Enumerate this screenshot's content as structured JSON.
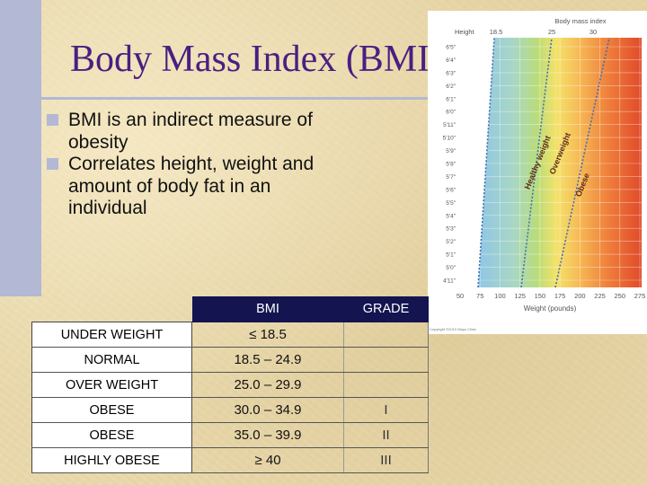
{
  "slide": {
    "title": "Body Mass Index (BMI)",
    "bullets": [
      "BMI is an indirect measure of obesity",
      "Correlates height, weight and amount of body fat in an individual"
    ]
  },
  "chart": {
    "height_label": "Height",
    "top_label": "Body mass index",
    "bmi_ticks": [
      "18.5",
      "25",
      "30"
    ],
    "height_ticks": [
      "6'5\"",
      "6'4\"",
      "6'3\"",
      "6'2\"",
      "6'1\"",
      "6'0\"",
      "5'11\"",
      "5'10\"",
      "5'9\"",
      "5'8\"",
      "5'7\"",
      "5'6\"",
      "5'5\"",
      "5'4\"",
      "5'3\"",
      "5'2\"",
      "5'1\"",
      "5'0\"",
      "4'11\""
    ],
    "weight_ticks": [
      "50",
      "75",
      "100",
      "125",
      "150",
      "175",
      "200",
      "225",
      "250",
      "275"
    ],
    "weight_label": "Weight (pounds)",
    "zones": [
      "Healthy weight",
      "Overweight",
      "Obese"
    ],
    "copyright": "Copyright ©2010 Mayo Clinic"
  },
  "table": {
    "headers": {
      "bmi": "BMI",
      "grade": "GRADE"
    },
    "rows": [
      {
        "label": "UNDER WEIGHT",
        "bmi": "≤ 18.5",
        "grade": ""
      },
      {
        "label": "NORMAL",
        "bmi": "18.5 – 24.9",
        "grade": ""
      },
      {
        "label": "OVER WEIGHT",
        "bmi": "25.0 – 29.9",
        "grade": ""
      },
      {
        "label": "OBESE",
        "bmi": "30.0 – 34.9",
        "grade": "I"
      },
      {
        "label": "OBESE",
        "bmi": "35.0 – 39.9",
        "grade": "II"
      },
      {
        "label": "HIGHLY OBESE",
        "bmi": "≥ 40",
        "grade": "III"
      }
    ]
  }
}
